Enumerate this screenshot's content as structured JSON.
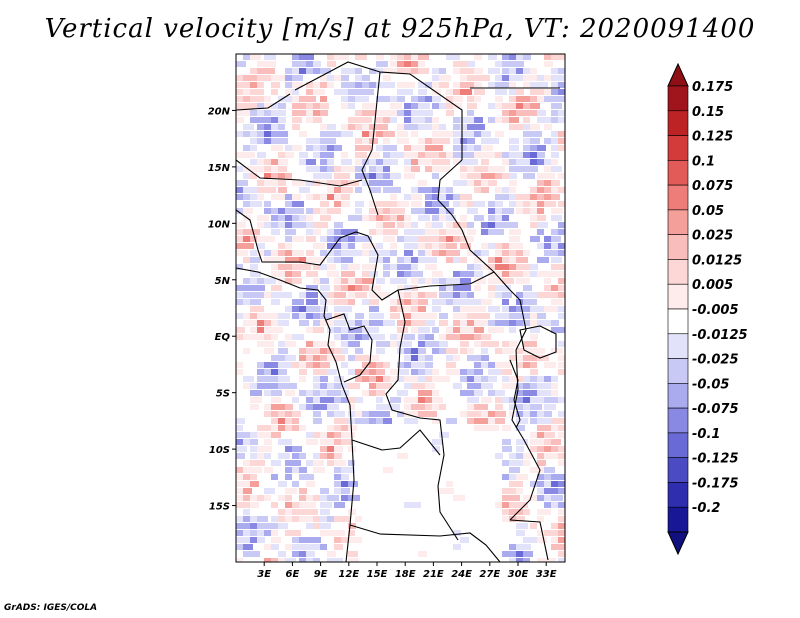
{
  "title": "Vertical velocity [m/s] at 925hPa, VT: 2020091400",
  "footer": "GrADS: IGES/COLA",
  "map": {
    "extent": {
      "lon_min": 0,
      "lon_max": 35,
      "lat_min": -20,
      "lat_max": 25
    },
    "lat_ticks": [
      {
        "label": "20N",
        "value": 20
      },
      {
        "label": "15N",
        "value": 15
      },
      {
        "label": "10N",
        "value": 10
      },
      {
        "label": "5N",
        "value": 5
      },
      {
        "label": "EQ",
        "value": 0
      },
      {
        "label": "5S",
        "value": -5
      },
      {
        "label": "10S",
        "value": -10
      },
      {
        "label": "15S",
        "value": -15
      }
    ],
    "lon_ticks": [
      {
        "label": "3E",
        "value": 3
      },
      {
        "label": "6E",
        "value": 6
      },
      {
        "label": "9E",
        "value": 9
      },
      {
        "label": "12E",
        "value": 12
      },
      {
        "label": "15E",
        "value": 15
      },
      {
        "label": "18E",
        "value": 18
      },
      {
        "label": "21E",
        "value": 21
      },
      {
        "label": "24E",
        "value": 24
      },
      {
        "label": "27E",
        "value": 27
      },
      {
        "label": "30E",
        "value": 30
      },
      {
        "label": "33E",
        "value": 33
      }
    ]
  },
  "colorbar": {
    "levels": [
      {
        "label": "0.175",
        "color": "#a0151c"
      },
      {
        "label": "0.15",
        "color": "#bd2225"
      },
      {
        "label": "0.125",
        "color": "#d33b3b"
      },
      {
        "label": "0.1",
        "color": "#e35b58"
      },
      {
        "label": "0.075",
        "color": "#ee7d79"
      },
      {
        "label": "0.05",
        "color": "#f59f9b"
      },
      {
        "label": "0.025",
        "color": "#f9bebb"
      },
      {
        "label": "0.0125",
        "color": "#fcd7d5"
      },
      {
        "label": "0.005",
        "color": "#feecec"
      },
      {
        "label": "-0.005",
        "color": "#ffffff"
      },
      {
        "label": "-0.0125",
        "color": "#e2e2fb"
      },
      {
        "label": "-0.025",
        "color": "#c9c9f5"
      },
      {
        "label": "-0.05",
        "color": "#aaaaee"
      },
      {
        "label": "-0.075",
        "color": "#8989e3"
      },
      {
        "label": "-0.1",
        "color": "#6a6ad6"
      },
      {
        "label": "-0.125",
        "color": "#4b4bc4"
      },
      {
        "label": "-0.175",
        "color": "#2e2eae"
      },
      {
        "label": "-0.2",
        "color": "#181896"
      }
    ],
    "extreme_colors": {
      "high": "#8e1015",
      "low": "#10107e"
    }
  }
}
